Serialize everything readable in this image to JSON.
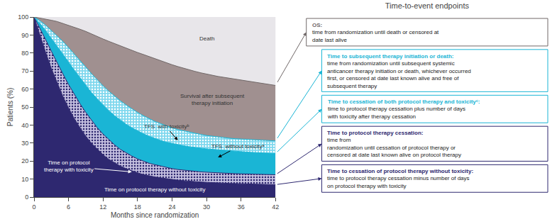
{
  "chart_data": {
    "type": "area",
    "title": "Time-to-event endpoints",
    "x_label": "Months since randomization",
    "y_label": "Patients (%)",
    "x": [
      0,
      1,
      2,
      3,
      4,
      5,
      6,
      7,
      8,
      9,
      10,
      11,
      12,
      13,
      14,
      15,
      16,
      17,
      18,
      19,
      20,
      21,
      22,
      23,
      24,
      25,
      26,
      27,
      28,
      29,
      30,
      31,
      32,
      33,
      34,
      35,
      36,
      37,
      38,
      39,
      40,
      41,
      42
    ],
    "xlim": [
      0,
      42
    ],
    "xticks": [
      0,
      6,
      12,
      18,
      24,
      30,
      36,
      42
    ],
    "ylim": [
      0,
      100
    ],
    "yticks": [
      0,
      10,
      20,
      30,
      40,
      50,
      60,
      70,
      80,
      90,
      100
    ],
    "grid": false,
    "colors": [
      "#2e2870",
      "#c5c0e0",
      "#1ab5d5",
      "#7fd8ee",
      "#a09090",
      "#e8e6ea"
    ],
    "annotations": [
      "Time on protocol therapy without toxicity",
      "Time on protocol\ntherapy with toxicity",
      "TFS  without toxicityᵃ",
      "TFS  with toxicityᵇ",
      "Survival after subsequent\ntherapy initiation",
      "Death"
    ],
    "series": [
      {
        "name": "OS:",
        "description": "time from randomization until death or censored at\ndate last alive",
        "color": "#706868",
        "values": [
          100,
          99.5,
          99.0,
          98.2,
          97.5,
          96.5,
          95.5,
          94.5,
          93.2,
          92.0,
          90.5,
          89.2,
          87.8,
          86.5,
          85.2,
          84.0,
          82.8,
          81.5,
          80.3,
          79.2,
          78.0,
          76.8,
          75.7,
          74.5,
          73.5,
          72.5,
          71.5,
          70.5,
          69.8,
          69.0,
          68.3,
          67.5,
          67.0,
          66.5,
          66.0,
          65.5,
          65.0,
          64.5,
          64.0,
          63.5,
          63.0,
          62.5,
          62.0
        ]
      },
      {
        "name": "Time to subsequent therapy initiation or death:",
        "description": "time from randomization until subsequent systemic\nanticancer therapy initiation or death, whichever occurred\nfirst, or censored at date last known alive and free of\nsubsequent therapy",
        "color": "#1ab5d5",
        "values": [
          100,
          98.0,
          95.5,
          92.5,
          89.5,
          86.5,
          83.0,
          79.5,
          75.8,
          72.2,
          68.5,
          65.0,
          61.8,
          58.8,
          56.0,
          53.5,
          51.2,
          49.0,
          47.0,
          45.2,
          43.5,
          42.0,
          40.8,
          39.5,
          38.5,
          37.5,
          36.8,
          36.0,
          35.3,
          34.8,
          34.2,
          33.8,
          33.3,
          33.0,
          32.7,
          32.4,
          32.2,
          32.0,
          31.8,
          31.6,
          31.5,
          31.3,
          31.2
        ]
      },
      {
        "name": "Time to cessation of both protocol therapy and toxicityᶜ:",
        "description": "time to protocol therapy cessation plus number of days\nwith toxicity after therapy cessation",
        "color": "#1ab5d5",
        "values": [
          100,
          96.5,
          92.5,
          88.2,
          83.8,
          79.5,
          75.0,
          70.5,
          66.2,
          62.0,
          58.0,
          54.5,
          51.2,
          48.0,
          45.2,
          42.8,
          40.5,
          38.5,
          36.8,
          35.2,
          33.8,
          32.5,
          31.5,
          30.5,
          29.8,
          29.0,
          28.5,
          28.0,
          27.5,
          27.2,
          26.8,
          26.5,
          26.2,
          26.0,
          25.8,
          25.5,
          25.3,
          25.0,
          24.8,
          24.6,
          24.5,
          24.3,
          24.2
        ]
      },
      {
        "name": "Time to protocol therapy cessation:",
        "description": "time from\nrandomization until cessation of protocol therapy or\ncensored at date last known alive on protocol therapy",
        "color": "#2e2870",
        "values": [
          100,
          94.0,
          87.5,
          81.0,
          74.5,
          68.5,
          62.5,
          57.0,
          51.8,
          47.0,
          42.5,
          38.5,
          35.0,
          31.8,
          29.0,
          26.5,
          24.5,
          22.8,
          21.2,
          20.0,
          18.8,
          18.0,
          17.2,
          16.5,
          15.8,
          15.3,
          14.9,
          14.5,
          14.2,
          14.0,
          13.8,
          13.6,
          13.4,
          13.2,
          13.1,
          13.0,
          12.9,
          12.8,
          12.7,
          12.6,
          12.5,
          12.5,
          12.4
        ]
      },
      {
        "name": "Time to cessation of protocol therapy without toxicity:",
        "description": "time to protocol therapy cessation minus number of days\non protocol therapy with toxicity",
        "color": "#2e2870",
        "values": [
          100,
          90.0,
          80.5,
          71.5,
          63.5,
          56.0,
          49.5,
          43.5,
          38.5,
          33.8,
          29.8,
          26.5,
          23.5,
          21.0,
          19.0,
          17.2,
          15.8,
          14.5,
          13.5,
          12.5,
          11.8,
          11.2,
          10.7,
          10.2,
          9.8,
          9.4,
          9.1,
          8.8,
          8.6,
          8.4,
          8.2,
          8.0,
          7.8,
          7.7,
          7.6,
          7.5,
          7.4,
          7.3,
          7.2,
          7.1,
          7.0,
          7.0,
          6.9
        ]
      }
    ]
  }
}
